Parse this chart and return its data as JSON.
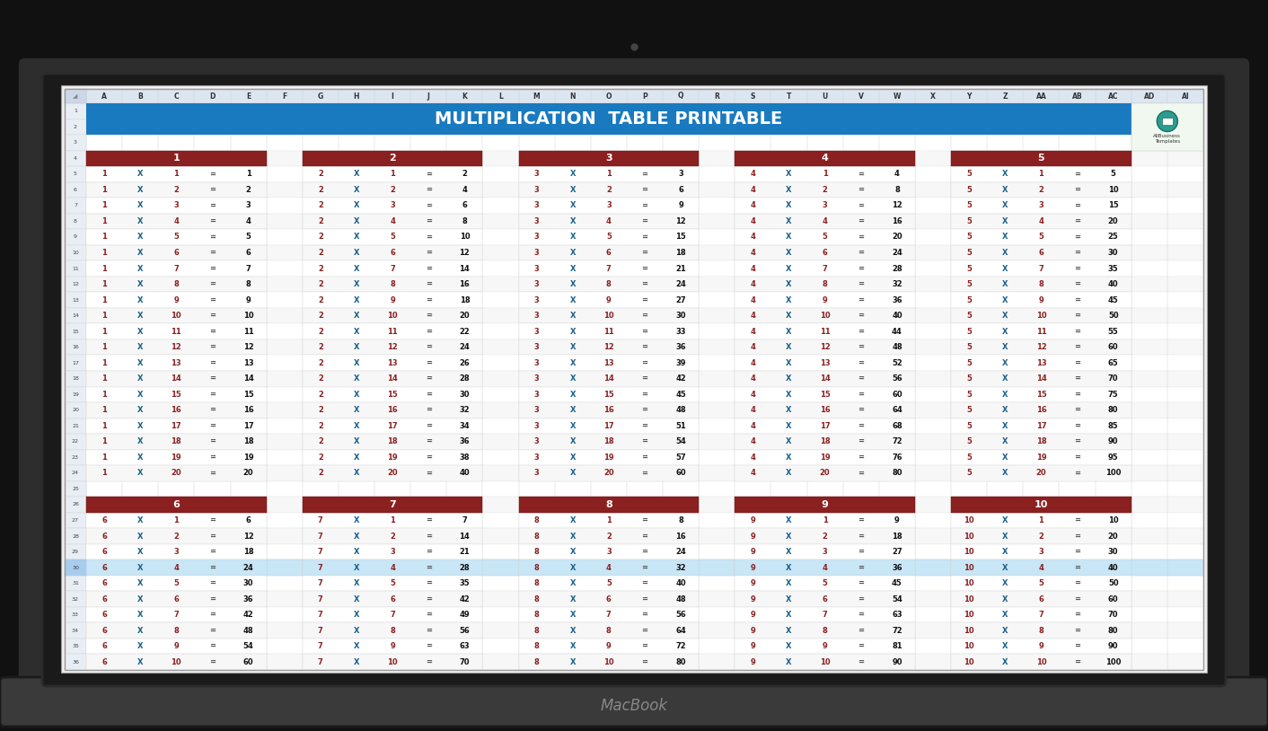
{
  "title": "MULTIPLICATION  TABLE PRINTABLE",
  "title_bg": "#1a7abf",
  "title_color": "#ffffff",
  "header_bg": "#8b2020",
  "header_color": "#ffffff",
  "grid_color": "#cccccc",
  "col_labels": [
    "A",
    "B",
    "C",
    "D",
    "E",
    "F",
    "G",
    "H",
    "I",
    "J",
    "K",
    "L",
    "M",
    "N",
    "O",
    "P",
    "Q",
    "R",
    "S",
    "T",
    "U",
    "V",
    "W",
    "X",
    "Y",
    "Z",
    "AA",
    "AB",
    "AC",
    "AD",
    "AI"
  ],
  "number_color": "#8b2020",
  "x_color": "#1a5f8a",
  "eq_color": "#555555",
  "result_color": "#111111",
  "highlight_row_color": "#c8e6f5",
  "highlight_row_num": 30,
  "laptop_outer_color": "#2d2d2d",
  "laptop_bezel_color": "#1a1a1a",
  "screen_bg": "#f0f0f0",
  "base_color": "#3a3a3a",
  "macbook_text_color": "#888888",
  "ss_col_header_bg": "#dce6f1",
  "ss_row_header_bg": "#e8eef4",
  "ss_bg_even": "#f7f7f7",
  "ss_bg_odd": "#ffffff",
  "logo_bg": "#f0f8f0",
  "logo_circle_color": "#2a9d8f",
  "logo_text": "AllBusiness\nTemplates"
}
